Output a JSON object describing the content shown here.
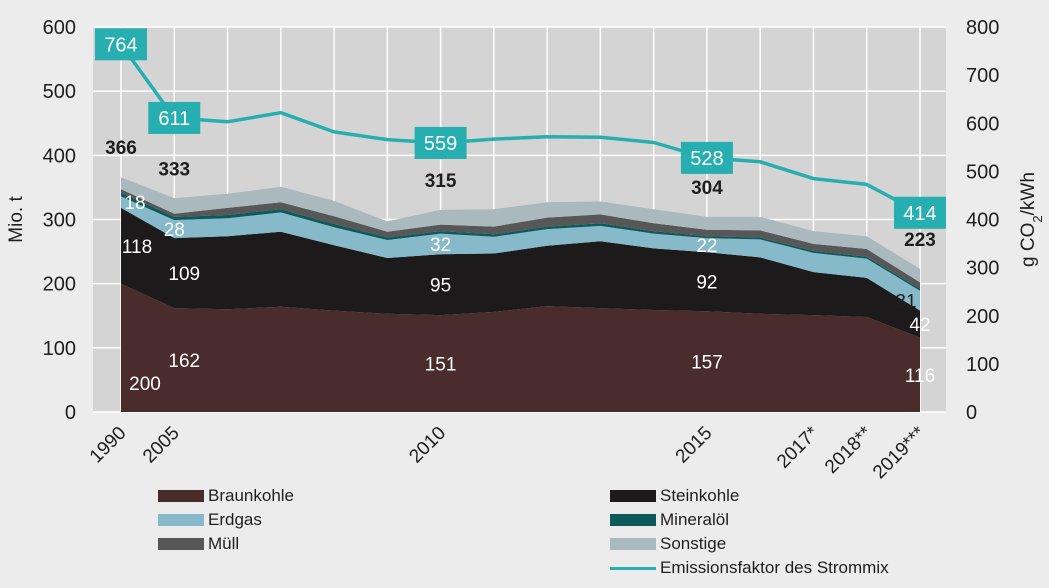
{
  "chart_data": {
    "type": "area",
    "x": [
      "1990",
      "2005",
      "2006",
      "2007",
      "2008",
      "2009",
      "2010",
      "2011",
      "2012",
      "2013",
      "2014",
      "2015",
      "2016",
      "2017*",
      "2018**",
      "2019***"
    ],
    "x_tick_labels": [
      "1990",
      "2005",
      "2010",
      "2015",
      "2017*",
      "2018**",
      "2019***"
    ],
    "stacked": true,
    "series": [
      {
        "name": "Braunkohle",
        "color": "#4a2c2d",
        "values": [
          200,
          162,
          160,
          164,
          158,
          153,
          151,
          156,
          165,
          162,
          159,
          157,
          153,
          151,
          148,
          116
        ]
      },
      {
        "name": "Steinkohle",
        "color": "#1c1a1a",
        "values": [
          118,
          109,
          114,
          117,
          102,
          87,
          95,
          91,
          94,
          104,
          96,
          92,
          88,
          67,
          61,
          42
        ]
      },
      {
        "name": "Erdgas",
        "color": "#86b9c9",
        "values": [
          18,
          28,
          28,
          30,
          28,
          28,
          32,
          26,
          26,
          24,
          23,
          22,
          28,
          30,
          30,
          31
        ]
      },
      {
        "name": "Mineralöl",
        "color": "#0e5a5a",
        "values": [
          6,
          5,
          5,
          5,
          5,
          4,
          4,
          4,
          4,
          4,
          4,
          3,
          3,
          3,
          3,
          3
        ]
      },
      {
        "name": "Müll",
        "color": "#575757",
        "values": [
          5,
          5,
          11,
          11,
          12,
          9,
          10,
          12,
          14,
          14,
          12,
          10,
          11,
          11,
          12,
          10
        ]
      },
      {
        "name": "Sonstige",
        "color": "#a9b9bd",
        "values": [
          19,
          24,
          22,
          24,
          24,
          16,
          23,
          27,
          24,
          20,
          22,
          20,
          21,
          20,
          20,
          21
        ]
      }
    ],
    "totals": [
      366,
      333,
      340,
      351,
      329,
      297,
      315,
      316,
      327,
      328,
      316,
      304,
      304,
      282,
      274,
      223
    ],
    "line_series": {
      "name": "Emissionsfaktor des Strommix",
      "color": "#26aeb0",
      "axis": "right",
      "values": [
        764,
        611,
        603,
        622,
        582,
        566,
        559,
        567,
        572,
        571,
        560,
        528,
        520,
        485,
        473,
        414
      ]
    },
    "y_left": {
      "label": "Mio. t",
      "min": 0,
      "max": 600,
      "ticks": [
        0,
        100,
        200,
        300,
        400,
        500,
        600
      ]
    },
    "y_right": {
      "label_main": "g CO",
      "label_sub": "2",
      "label_end": "/kWh",
      "min": 0,
      "max": 800,
      "ticks": [
        0,
        100,
        200,
        300,
        400,
        500,
        600,
        700,
        800
      ]
    },
    "grid": true,
    "value_labels": {
      "total": [
        {
          "i": 0,
          "text": "366"
        },
        {
          "i": 1,
          "text": "333"
        },
        {
          "i": 6,
          "text": "315"
        },
        {
          "i": 11,
          "text": "304"
        },
        {
          "i": 15,
          "text": "223"
        }
      ],
      "line": [
        {
          "i": 0,
          "text": "764"
        },
        {
          "i": 1,
          "text": "611"
        },
        {
          "i": 6,
          "text": "559"
        },
        {
          "i": 11,
          "text": "528"
        },
        {
          "i": 15,
          "text": "414"
        }
      ],
      "braunkohle": [
        {
          "i": 0,
          "text": "200"
        },
        {
          "i": 1,
          "text": "162"
        },
        {
          "i": 6,
          "text": "151"
        },
        {
          "i": 11,
          "text": "157"
        },
        {
          "i": 15,
          "text": "116"
        }
      ],
      "steinkohle": [
        {
          "i": 0,
          "text": "118"
        },
        {
          "i": 1,
          "text": "109"
        },
        {
          "i": 6,
          "text": "95"
        },
        {
          "i": 11,
          "text": "92"
        },
        {
          "i": 15,
          "text": "42"
        }
      ],
      "erdgas": [
        {
          "i": 0,
          "text": "18"
        },
        {
          "i": 1,
          "text": "28"
        },
        {
          "i": 6,
          "text": "32"
        },
        {
          "i": 11,
          "text": "22"
        },
        {
          "i": 15,
          "text": "31"
        }
      ]
    },
    "legend": {
      "placement": "bottom",
      "items": [
        {
          "label": "Braunkohle",
          "kind": "area",
          "color": "#4a2c2d"
        },
        {
          "label": "Steinkohle",
          "kind": "area",
          "color": "#1c1a1a"
        },
        {
          "label": "Erdgas",
          "kind": "area",
          "color": "#86b9c9"
        },
        {
          "label": "Mineralöl",
          "kind": "area",
          "color": "#0e5a5a"
        },
        {
          "label": "Müll",
          "kind": "area",
          "color": "#575757"
        },
        {
          "label": "Sonstige",
          "kind": "area",
          "color": "#a9b9bd"
        },
        {
          "label": "Emissionsfaktor des Strommix",
          "kind": "line",
          "color": "#26aeb0"
        }
      ]
    }
  }
}
